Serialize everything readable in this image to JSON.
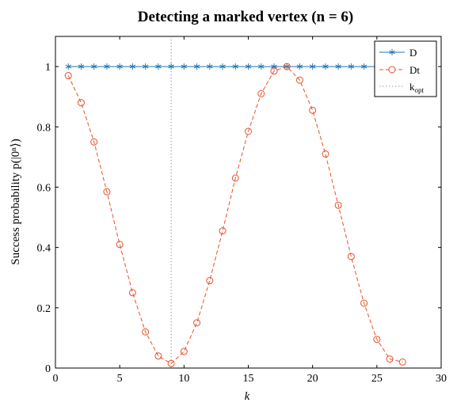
{
  "chart_data": {
    "type": "line",
    "title": "Detecting a marked vertex (n = 6)",
    "xlabel": "k",
    "ylabel": "Success probability p(|0ⁿ⟩)",
    "xlim": [
      0,
      30
    ],
    "ylim": [
      0,
      1.1
    ],
    "xticks": [
      0,
      5,
      10,
      15,
      20,
      25,
      30
    ],
    "yticks": [
      0,
      0.2,
      0.4,
      0.6,
      0.8,
      1
    ],
    "grid": false,
    "legend_position": "top-right",
    "series": [
      {
        "name": "D",
        "color": "#1f77b4",
        "marker": "asterisk",
        "line": "solid",
        "x": [
          1,
          2,
          3,
          4,
          5,
          6,
          7,
          8,
          9,
          10,
          11,
          12,
          13,
          14,
          15,
          16,
          17,
          18,
          19,
          20,
          21,
          22,
          23,
          24,
          25,
          26,
          27
        ],
        "y": [
          1,
          1,
          1,
          1,
          1,
          1,
          1,
          1,
          1,
          1,
          1,
          1,
          1,
          1,
          1,
          1,
          1,
          1,
          1,
          1,
          1,
          1,
          1,
          1,
          1,
          1,
          1
        ]
      },
      {
        "name": "Dt",
        "color": "#e8502a",
        "marker": "circle",
        "line": "dashed",
        "x": [
          1,
          2,
          3,
          4,
          5,
          6,
          7,
          8,
          9,
          10,
          11,
          12,
          13,
          14,
          15,
          16,
          17,
          18,
          19,
          20,
          21,
          22,
          23,
          24,
          25,
          26,
          27
        ],
        "y": [
          0.97,
          0.88,
          0.75,
          0.585,
          0.41,
          0.25,
          0.12,
          0.04,
          0.015,
          0.055,
          0.15,
          0.29,
          0.455,
          0.63,
          0.785,
          0.91,
          0.985,
          1.0,
          0.955,
          0.855,
          0.71,
          0.54,
          0.37,
          0.215,
          0.095,
          0.03,
          0.02
        ]
      }
    ],
    "reference_line": {
      "name": "k_opt",
      "label_main": "k",
      "label_sub": "opt",
      "x": 9,
      "color": "#888888",
      "line": "dotted"
    }
  }
}
